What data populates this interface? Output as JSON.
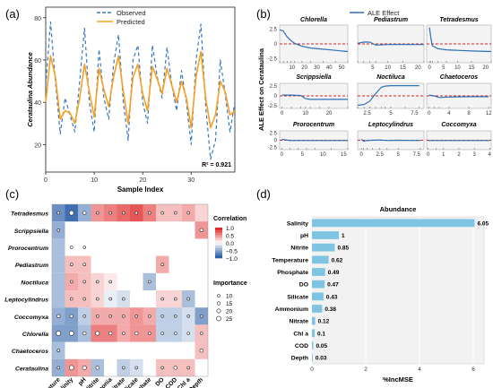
{
  "panels": {
    "a": "(a)",
    "b": "(b)",
    "c": "(c)",
    "d": "(d)"
  },
  "chart_data": [
    {
      "id": "a",
      "type": "line",
      "xlabel": "Sample Index",
      "ylabel": "Cerataulina Abundance",
      "xlim": [
        0,
        39
      ],
      "ylim": [
        7,
        85
      ],
      "xticks": [
        0,
        10,
        20,
        30
      ],
      "yticks": [
        20,
        40,
        60,
        80
      ],
      "legend_position": "top-center",
      "annotation": "R² = 0.921",
      "colors": {
        "observed": "#3a78c3",
        "predicted": "#f5a020"
      },
      "series": [
        {
          "name": "Observed",
          "style": "dashed",
          "x": [
            0,
            1,
            2,
            3,
            4,
            5,
            6,
            7,
            8,
            9,
            10,
            11,
            12,
            13,
            14,
            15,
            16,
            17,
            18,
            19,
            20,
            21,
            22,
            23,
            24,
            25,
            26,
            27,
            28,
            29,
            30,
            31,
            32,
            33,
            34,
            35,
            36,
            37,
            38,
            39
          ],
          "values": [
            48,
            78,
            50,
            25,
            42,
            34,
            26,
            50,
            75,
            40,
            26,
            65,
            42,
            32,
            58,
            72,
            40,
            22,
            60,
            67,
            40,
            30,
            67,
            52,
            42,
            66,
            48,
            36,
            55,
            40,
            20,
            60,
            77,
            38,
            13,
            22,
            60,
            44,
            26,
            40
          ]
        },
        {
          "name": "Predicted",
          "style": "solid",
          "x": [
            0,
            1,
            2,
            3,
            4,
            5,
            6,
            7,
            8,
            9,
            10,
            11,
            12,
            13,
            14,
            15,
            16,
            17,
            18,
            19,
            20,
            21,
            22,
            23,
            24,
            25,
            26,
            27,
            28,
            29,
            30,
            31,
            32,
            33,
            34,
            35,
            36,
            37,
            38,
            39
          ],
          "values": [
            40,
            62,
            52,
            32,
            36,
            35,
            30,
            42,
            58,
            45,
            33,
            56,
            46,
            38,
            52,
            62,
            45,
            30,
            52,
            58,
            44,
            36,
            57,
            51,
            44,
            56,
            48,
            40,
            50,
            42,
            28,
            52,
            64,
            42,
            28,
            34,
            50,
            45,
            34,
            36
          ]
        }
      ]
    },
    {
      "id": "b",
      "type": "line",
      "title": "ALE Effect",
      "ylabel": "ALE Effect on Cerataulina",
      "color": "#2b6fb6",
      "baseline_color": "#e02020",
      "subplots": [
        {
          "name": "Chlorella",
          "xticks": [
            10,
            20,
            30,
            40,
            50
          ],
          "xlim": [
            0,
            55
          ],
          "yticks": [
            2.5,
            0,
            -2.5
          ],
          "x": [
            0,
            3,
            6,
            9,
            12,
            18,
            25,
            35,
            45,
            55
          ],
          "y": [
            2.4,
            2.2,
            1.2,
            0.6,
            0.1,
            -0.4,
            -0.7,
            -0.9,
            -1.1,
            -1.3
          ]
        },
        {
          "name": "Pediastrum",
          "xticks": [
            5,
            10,
            15,
            20
          ],
          "xlim": [
            0,
            22
          ],
          "x": [
            0,
            2,
            4,
            6,
            10,
            15,
            22
          ],
          "y": [
            0.1,
            0.3,
            0.3,
            -0.2,
            -0.1,
            -0.1,
            -0.1
          ]
        },
        {
          "name": "Tetradesmus",
          "xticks": [
            0,
            5,
            10,
            15,
            20
          ],
          "xlim": [
            -1,
            22
          ],
          "x": [
            0,
            0.5,
            1,
            3,
            6,
            10,
            15,
            22
          ],
          "y": [
            2.8,
            1.0,
            -0.3,
            -0.8,
            -1.0,
            -1.1,
            -1.2,
            -1.3
          ]
        },
        {
          "name": "Scrippsiella",
          "xticks": [
            0,
            10,
            20
          ],
          "xlim": [
            -1,
            28
          ],
          "yticks": [
            2.5,
            0,
            -2.5
          ],
          "x": [
            0,
            4,
            8,
            10,
            12,
            16,
            20,
            28
          ],
          "y": [
            0.2,
            0.2,
            0.1,
            -0.7,
            -0.9,
            -0.9,
            -0.9,
            -0.9
          ]
        },
        {
          "name": "Noctiluca",
          "xticks": [
            2.5,
            5,
            7.5
          ],
          "xlim": [
            1.5,
            8.5
          ],
          "x": [
            1.5,
            2.2,
            2.8,
            3.4,
            4.0,
            4.4,
            5.0,
            6.5,
            8.0
          ],
          "y": [
            -2.4,
            -2.2,
            -1.3,
            0.6,
            2.2,
            2.5,
            2.6,
            2.6,
            2.6
          ]
        },
        {
          "name": "Chaetoceros",
          "xticks": [
            0,
            4,
            8,
            12
          ],
          "xlim": [
            -0.5,
            12.5
          ],
          "x": [
            0,
            1,
            2,
            4,
            8,
            12
          ],
          "y": [
            0.2,
            0.0,
            -0.4,
            -0.3,
            -0.2,
            -0.2
          ]
        },
        {
          "name": "Prorocentrum",
          "xticks": [
            0,
            5,
            10,
            15
          ],
          "xlim": [
            -0.5,
            16
          ],
          "yticks": [
            2.5,
            0,
            -2.5
          ],
          "x": [
            0,
            2,
            4,
            6,
            8,
            12,
            16
          ],
          "y": [
            0.3,
            -0.1,
            -0.1,
            -0.1,
            -0.1,
            -0.1,
            -0.1
          ]
        },
        {
          "name": "Leptocylindrus",
          "xticks": [
            0,
            2.5,
            5,
            7.5
          ],
          "xlim": [
            -0.5,
            8.5
          ],
          "x": [
            0,
            0.3,
            0.8,
            1.5,
            2.5,
            3.5,
            5,
            8
          ],
          "y": [
            0.3,
            -0.3,
            -0.1,
            0.0,
            0.1,
            -0.1,
            0.0,
            -0.1
          ]
        },
        {
          "name": "Coccomyxa",
          "xticks": [
            0,
            1,
            2,
            3,
            4
          ],
          "xlim": [
            -0.1,
            4.1
          ],
          "x": [
            0,
            0.5,
            1,
            2,
            3,
            4
          ],
          "y": [
            -0.1,
            -0.1,
            -0.1,
            -0.1,
            -0.1,
            -0.1
          ]
        }
      ]
    },
    {
      "id": "c",
      "type": "heatmap",
      "rows": [
        "Tetradesmus",
        "Scrippsiella",
        "Prorocentrum",
        "Pediastrum",
        "Noctiluca",
        "Leptocylindrus",
        "Coccomyxa",
        "Chlorella",
        "Chaetoceros",
        "Cerataulina"
      ],
      "columns": [
        "Temperature",
        "Salinity",
        "pH",
        "Nitrite",
        "Ammonia",
        "Nitrate",
        "Silicate",
        "Phosphate",
        "DO",
        "COD",
        "Chl a",
        "Depth"
      ],
      "values": [
        [
          -0.7,
          -0.9,
          -0.5,
          0.5,
          0.6,
          0.7,
          0.8,
          0.6,
          0.3,
          0.3,
          0.4,
          0.2
        ],
        [
          -0.5,
          null,
          null,
          null,
          null,
          null,
          null,
          null,
          null,
          null,
          null,
          0.5
        ],
        [
          -0.4,
          null,
          null,
          null,
          null,
          null,
          null,
          null,
          null,
          null,
          null,
          null
        ],
        [
          -0.4,
          0.3,
          0.3,
          null,
          null,
          null,
          null,
          null,
          0.4,
          null,
          null,
          null
        ],
        [
          -0.4,
          0.4,
          0.3,
          0.2,
          0.1,
          null,
          null,
          -0.4,
          null,
          null,
          null,
          null
        ],
        [
          -0.4,
          0.3,
          0.3,
          0.2,
          -0.1,
          -0.2,
          null,
          null,
          0.2,
          0.2,
          -0.4,
          null
        ],
        [
          -0.5,
          -0.6,
          -0.3,
          0.4,
          0.4,
          0.4,
          0.5,
          0.4,
          -0.3,
          -0.3,
          -0.2,
          -0.6
        ],
        [
          -0.6,
          -0.6,
          -0.4,
          0.6,
          0.6,
          0.4,
          0.5,
          0.5,
          -0.3,
          -0.3,
          -0.2,
          0.3
        ],
        [
          -0.4,
          null,
          null,
          null,
          null,
          null,
          null,
          null,
          null,
          null,
          null,
          0.3
        ],
        [
          -0.5,
          0.5,
          0.4,
          -0.4,
          null,
          -0.3,
          -0.2,
          null,
          0.3,
          0.3,
          0.3,
          null
        ]
      ],
      "importance": [
        [
          10,
          25,
          15,
          10,
          10,
          10,
          10,
          10,
          10,
          10,
          10,
          null
        ],
        [
          10,
          null,
          null,
          null,
          null,
          null,
          null,
          null,
          null,
          null,
          null,
          15
        ],
        [
          null,
          10,
          10,
          null,
          null,
          null,
          null,
          null,
          null,
          null,
          null,
          null
        ],
        [
          null,
          10,
          10,
          null,
          null,
          null,
          null,
          null,
          10,
          null,
          null,
          null
        ],
        [
          null,
          10,
          10,
          10,
          10,
          null,
          null,
          10,
          null,
          null,
          null,
          null
        ],
        [
          null,
          10,
          10,
          10,
          10,
          10,
          null,
          null,
          10,
          10,
          10,
          null
        ],
        [
          15,
          15,
          10,
          10,
          10,
          10,
          10,
          10,
          10,
          10,
          10,
          10
        ],
        [
          25,
          25,
          15,
          20,
          15,
          10,
          15,
          10,
          10,
          10,
          10,
          10
        ],
        [
          10,
          null,
          null,
          null,
          null,
          null,
          null,
          null,
          null,
          null,
          null,
          15
        ],
        [
          10,
          25,
          20,
          15,
          null,
          10,
          10,
          null,
          10,
          15,
          10,
          null
        ]
      ],
      "legend_correlation": {
        "title": "Correlation",
        "ticks": [
          "1.0",
          "0.5",
          "0.0",
          "−0.5",
          "−1.0"
        ],
        "range": [
          -1,
          1
        ],
        "colors": [
          "#2b5fa8",
          "#ffffff",
          "#e02a2a"
        ]
      },
      "legend_importance": {
        "title": "Importance",
        "sizes": [
          10,
          15,
          20,
          25
        ]
      }
    },
    {
      "id": "d",
      "type": "bar",
      "orientation": "horizontal",
      "title": "Abundance",
      "xlabel": "%IncMSE",
      "xticks": [
        0,
        2,
        4,
        6
      ],
      "xlim": [
        0,
        6.4
      ],
      "color": "#80c4e4",
      "categories": [
        "Salinity",
        "pH",
        "Nitrite",
        "Temperature",
        "Phosphate",
        "DO",
        "Silicate",
        "Ammonium",
        "Nitrate",
        "Chl a",
        "COD",
        "Depth"
      ],
      "values": [
        6.05,
        1,
        0.85,
        0.62,
        0.49,
        0.47,
        0.43,
        0.38,
        0.12,
        0.1,
        0.05,
        0.03
      ],
      "labels": [
        "6.05",
        "1",
        "0.85",
        "0.62",
        "0.49",
        "0.47",
        "0.43",
        "0.38",
        "0.12",
        "0.1",
        "0.05",
        "0.03"
      ]
    }
  ]
}
